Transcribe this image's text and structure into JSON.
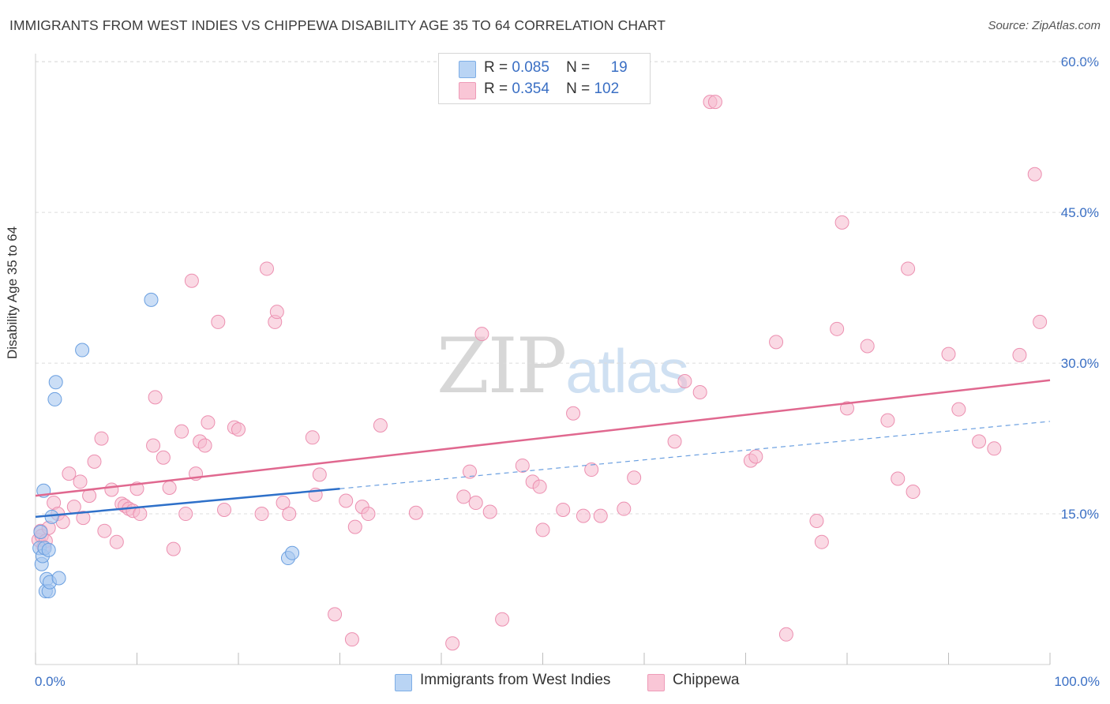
{
  "header": {
    "title": "IMMIGRANTS FROM WEST INDIES VS CHIPPEWA DISABILITY AGE 35 TO 64 CORRELATION CHART",
    "source": "Source: ZipAtlas.com"
  },
  "watermark": {
    "zip": "ZIP",
    "atlas": "atlas"
  },
  "legend_top": {
    "rows": [
      {
        "r_label": "R =",
        "r_value": "0.085",
        "n_label": "N =",
        "n_value": "19"
      },
      {
        "r_label": "R =",
        "r_value": "0.354",
        "n_label": "N =",
        "n_value": "102"
      }
    ]
  },
  "chart_data": {
    "type": "scatter",
    "title": "IMMIGRANTS FROM WEST INDIES VS CHIPPEWA DISABILITY AGE 35 TO 64 CORRELATION CHART",
    "xlabel": "",
    "ylabel": "Disability Age 35 to 64",
    "xlim": [
      0,
      100
    ],
    "ylim": [
      0,
      60
    ],
    "x_tick_labels": [
      "0.0%",
      "100.0%"
    ],
    "y_ticks": [
      15,
      30,
      45,
      60
    ],
    "y_tick_labels": [
      "15.0%",
      "30.0%",
      "45.0%",
      "60.0%"
    ],
    "colors": {
      "blue_fill": "#a8c8f0",
      "blue_stroke": "#6a9fe0",
      "blue_line": "#2e70c9",
      "pink_fill": "#f6b9cd",
      "pink_stroke": "#ec8fb0",
      "pink_line": "#e0688f",
      "tick_label": "#3a6fc4",
      "grid": "#dcdcdc"
    },
    "series": [
      {
        "name": "Immigrants from West Indies",
        "r": 0.085,
        "n": 19,
        "trend": {
          "x0": 0,
          "y0": 14.7,
          "x1": 30,
          "y1": 17.5,
          "dash_x1": 100,
          "dash_y1": 24.2
        },
        "points": [
          [
            0.4,
            11.6
          ],
          [
            0.5,
            13.2
          ],
          [
            0.6,
            10.0
          ],
          [
            0.7,
            10.8
          ],
          [
            0.8,
            17.3
          ],
          [
            0.9,
            11.6
          ],
          [
            1.0,
            7.3
          ],
          [
            1.1,
            8.5
          ],
          [
            1.3,
            7.3
          ],
          [
            1.4,
            8.2
          ],
          [
            1.6,
            14.7
          ],
          [
            1.9,
            26.4
          ],
          [
            2.0,
            28.1
          ],
          [
            2.3,
            8.6
          ],
          [
            4.6,
            31.3
          ],
          [
            11.4,
            36.3
          ],
          [
            24.9,
            10.6
          ],
          [
            25.3,
            11.1
          ],
          [
            1.3,
            11.4
          ]
        ]
      },
      {
        "name": "Chippewa",
        "r": 0.354,
        "n": 102,
        "trend": {
          "x0": 0,
          "y0": 16.8,
          "x1": 100,
          "y1": 28.3
        },
        "points": [
          [
            0.3,
            12.4
          ],
          [
            0.5,
            13.3
          ],
          [
            0.6,
            12.8
          ],
          [
            0.8,
            11.7
          ],
          [
            1.0,
            12.3
          ],
          [
            1.3,
            13.6
          ],
          [
            1.8,
            16.1
          ],
          [
            2.2,
            15.0
          ],
          [
            2.7,
            14.2
          ],
          [
            3.3,
            19.0
          ],
          [
            3.8,
            15.7
          ],
          [
            4.4,
            18.2
          ],
          [
            4.7,
            14.6
          ],
          [
            5.3,
            16.8
          ],
          [
            5.8,
            20.2
          ],
          [
            6.5,
            22.5
          ],
          [
            6.8,
            13.3
          ],
          [
            7.5,
            17.4
          ],
          [
            8.0,
            12.2
          ],
          [
            8.5,
            16.0
          ],
          [
            8.8,
            15.8
          ],
          [
            9.2,
            15.5
          ],
          [
            9.6,
            15.3
          ],
          [
            10.0,
            17.5
          ],
          [
            10.3,
            15.0
          ],
          [
            11.6,
            21.8
          ],
          [
            11.8,
            26.6
          ],
          [
            12.6,
            20.6
          ],
          [
            13.2,
            17.6
          ],
          [
            13.6,
            11.5
          ],
          [
            14.4,
            23.2
          ],
          [
            14.8,
            15.0
          ],
          [
            15.4,
            38.2
          ],
          [
            15.8,
            19.0
          ],
          [
            16.2,
            22.2
          ],
          [
            16.7,
            21.8
          ],
          [
            17.0,
            24.1
          ],
          [
            18.0,
            34.1
          ],
          [
            18.6,
            15.4
          ],
          [
            19.6,
            23.6
          ],
          [
            20.0,
            23.4
          ],
          [
            22.3,
            15.0
          ],
          [
            22.8,
            39.4
          ],
          [
            23.6,
            34.1
          ],
          [
            23.8,
            35.1
          ],
          [
            24.4,
            16.1
          ],
          [
            25.0,
            15.0
          ],
          [
            27.3,
            22.6
          ],
          [
            27.6,
            16.9
          ],
          [
            28.0,
            18.9
          ],
          [
            29.5,
            5.0
          ],
          [
            30.6,
            16.3
          ],
          [
            31.2,
            2.5
          ],
          [
            31.5,
            13.7
          ],
          [
            32.2,
            15.7
          ],
          [
            32.8,
            15.0
          ],
          [
            34.0,
            23.8
          ],
          [
            37.5,
            15.1
          ],
          [
            41.1,
            2.1
          ],
          [
            42.2,
            16.7
          ],
          [
            42.8,
            19.2
          ],
          [
            43.4,
            16.1
          ],
          [
            44.0,
            32.9
          ],
          [
            44.8,
            15.2
          ],
          [
            46.0,
            4.5
          ],
          [
            48.0,
            19.8
          ],
          [
            49.0,
            18.2
          ],
          [
            49.7,
            17.7
          ],
          [
            50.0,
            13.4
          ],
          [
            52.0,
            15.4
          ],
          [
            53.0,
            25.0
          ],
          [
            54.0,
            14.8
          ],
          [
            54.8,
            19.4
          ],
          [
            55.7,
            14.8
          ],
          [
            58.0,
            15.5
          ],
          [
            59.0,
            18.6
          ],
          [
            63.0,
            22.2
          ],
          [
            64.0,
            28.2
          ],
          [
            65.5,
            27.1
          ],
          [
            66.5,
            56.0
          ],
          [
            67.0,
            56.0
          ],
          [
            70.5,
            20.3
          ],
          [
            71.0,
            20.7
          ],
          [
            73.0,
            32.1
          ],
          [
            74.0,
            3.0
          ],
          [
            77.0,
            14.3
          ],
          [
            77.5,
            12.2
          ],
          [
            79.0,
            33.4
          ],
          [
            79.5,
            44.0
          ],
          [
            80.0,
            25.5
          ],
          [
            82.0,
            31.7
          ],
          [
            84.0,
            24.3
          ],
          [
            85.0,
            18.5
          ],
          [
            86.0,
            39.4
          ],
          [
            86.5,
            17.2
          ],
          [
            90.0,
            30.9
          ],
          [
            91.0,
            25.4
          ],
          [
            93.0,
            22.2
          ],
          [
            94.5,
            21.5
          ],
          [
            97.0,
            30.8
          ],
          [
            98.5,
            48.8
          ],
          [
            99.0,
            34.1
          ]
        ]
      }
    ]
  },
  "legend_bottom": {
    "items": [
      {
        "label": "Immigrants from West Indies"
      },
      {
        "label": "Chippewa"
      }
    ]
  }
}
